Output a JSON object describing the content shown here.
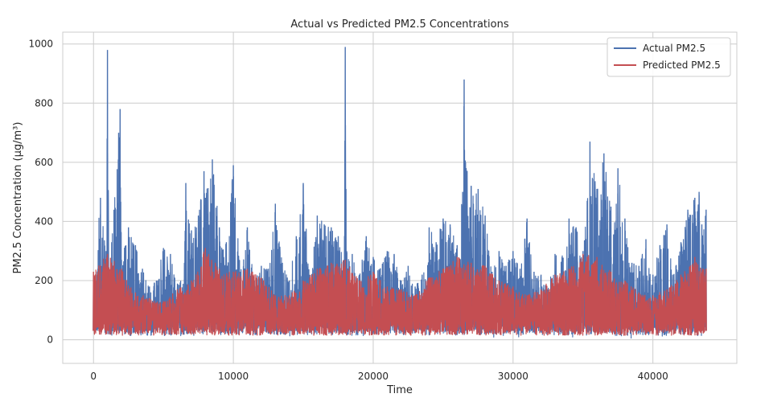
{
  "chart_data": {
    "type": "line",
    "title": "Actual vs Predicted PM2.5 Concentrations",
    "xlabel": "Time",
    "ylabel": "PM2.5 Concentration (µg/m³)",
    "xlim": [
      -2200,
      46000
    ],
    "ylim": [
      -80,
      1040
    ],
    "x_ticks": [
      0,
      10000,
      20000,
      30000,
      40000
    ],
    "x_tick_labels": [
      "0",
      "10000",
      "20000",
      "30000",
      "40000"
    ],
    "y_ticks": [
      0,
      200,
      400,
      600,
      800,
      1000
    ],
    "y_tick_labels": [
      "0",
      "200",
      "400",
      "600",
      "800",
      "1000"
    ],
    "grid": true,
    "legend_position": "top-right",
    "series": [
      {
        "name": "Actual PM2.5",
        "color": "#4c72b0",
        "x": [
          0,
          500,
          900,
          1000,
          1100,
          1300,
          1800,
          1900,
          2000,
          2500,
          3000,
          3500,
          4000,
          4500,
          5000,
          5500,
          6000,
          6500,
          6600,
          7000,
          7500,
          7900,
          8000,
          8500,
          9000,
          9500,
          10000,
          10500,
          11000,
          11500,
          12000,
          12500,
          13000,
          13500,
          14000,
          14500,
          15000,
          15500,
          16000,
          16500,
          17000,
          17500,
          17900,
          18000,
          18100,
          18500,
          19000,
          19500,
          20000,
          20500,
          21000,
          21500,
          22000,
          22500,
          23000,
          23500,
          24000,
          24500,
          25000,
          25500,
          26000,
          26400,
          26500,
          26600,
          27000,
          27500,
          28000,
          28500,
          29000,
          29500,
          30000,
          30500,
          31000,
          31500,
          32000,
          32500,
          33000,
          33500,
          34000,
          34500,
          35000,
          35300,
          35500,
          36000,
          36500,
          37000,
          37500,
          38000,
          38500,
          39000,
          39500,
          40000,
          40500,
          41000,
          41500,
          42000,
          42500,
          43000,
          43300,
          43500,
          43800
        ],
        "y": [
          170,
          480,
          300,
          980,
          200,
          330,
          700,
          780,
          270,
          380,
          320,
          240,
          180,
          200,
          310,
          290,
          190,
          260,
          530,
          370,
          420,
          570,
          480,
          610,
          380,
          330,
          590,
          230,
          380,
          200,
          250,
          240,
          460,
          260,
          200,
          350,
          530,
          190,
          420,
          390,
          380,
          350,
          270,
          990,
          300,
          290,
          220,
          350,
          280,
          240,
          300,
          290,
          200,
          250,
          180,
          220,
          380,
          330,
          410,
          390,
          320,
          500,
          880,
          600,
          520,
          510,
          420,
          230,
          300,
          250,
          300,
          240,
          410,
          230,
          220,
          170,
          290,
          280,
          410,
          380,
          300,
          470,
          670,
          510,
          630,
          450,
          580,
          410,
          260,
          250,
          340,
          220,
          320,
          390,
          220,
          330,
          440,
          480,
          500,
          390,
          440
        ]
      },
      {
        "name": "Predicted PM2.5",
        "color": "#c44e52",
        "x": [
          0,
          1000,
          2000,
          3000,
          4000,
          5000,
          6000,
          7000,
          8000,
          9000,
          10000,
          11000,
          12000,
          13000,
          14000,
          15000,
          16000,
          17000,
          18000,
          19000,
          20000,
          21000,
          22000,
          23000,
          24000,
          25000,
          26000,
          27000,
          28000,
          29000,
          30000,
          31000,
          32000,
          33000,
          34000,
          35000,
          36000,
          37000,
          38000,
          39000,
          40000,
          41000,
          42000,
          43000,
          43800
        ],
        "y": [
          230,
          290,
          240,
          160,
          140,
          130,
          170,
          200,
          310,
          240,
          230,
          240,
          210,
          150,
          150,
          200,
          240,
          260,
          270,
          200,
          230,
          180,
          170,
          150,
          210,
          240,
          280,
          260,
          250,
          200,
          180,
          150,
          170,
          220,
          240,
          290,
          280,
          230,
          200,
          160,
          150,
          170,
          220,
          280,
          240
        ]
      }
    ]
  }
}
